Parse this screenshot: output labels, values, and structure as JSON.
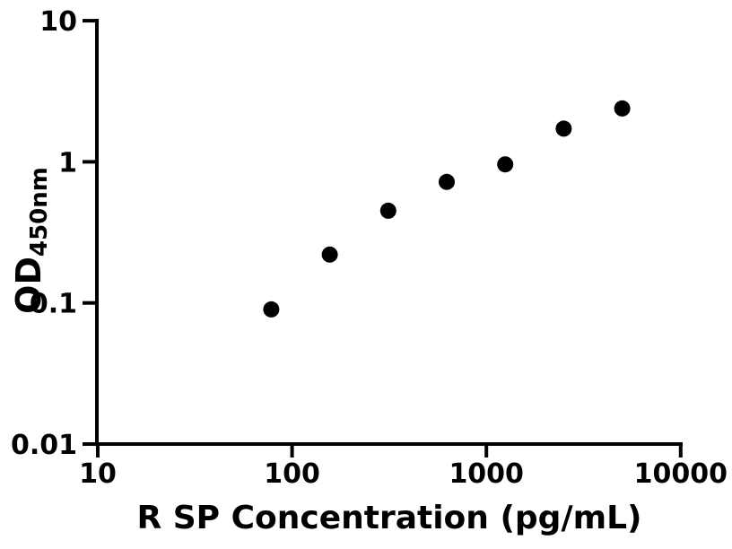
{
  "colors": {
    "background": "#ffffff",
    "ink": "#000000"
  },
  "chart_data": {
    "type": "scatter",
    "title": "",
    "xlabel": "R SP Concentration (pg/mL)",
    "ylabel": "OD",
    "ylabel_subscript": "450nm",
    "x_scale": "log10",
    "y_scale": "log10",
    "xlim": [
      10,
      10000
    ],
    "ylim": [
      0.01,
      10
    ],
    "grid": false,
    "legend": null,
    "x": [
      78.125,
      156.25,
      312.5,
      625,
      1250,
      2500,
      5000
    ],
    "y": [
      0.09,
      0.22,
      0.45,
      0.72,
      0.96,
      1.72,
      2.39
    ],
    "x_axis": {
      "ticks": [
        {
          "value": 10,
          "label": "10"
        },
        {
          "value": 100,
          "label": "100"
        },
        {
          "value": 1000,
          "label": "1000"
        },
        {
          "value": 10000,
          "label": "10000"
        }
      ]
    },
    "y_axis": {
      "ticks": [
        {
          "value": 10,
          "label": "10"
        },
        {
          "value": 1,
          "label": "1"
        },
        {
          "value": 0.1,
          "label": "0.1"
        },
        {
          "value": 0.01,
          "label": "0.01"
        }
      ]
    },
    "marker": {
      "shape": "filled-circle",
      "color": "#000000"
    },
    "fit_line": {
      "present": true,
      "color": "#000000"
    }
  }
}
